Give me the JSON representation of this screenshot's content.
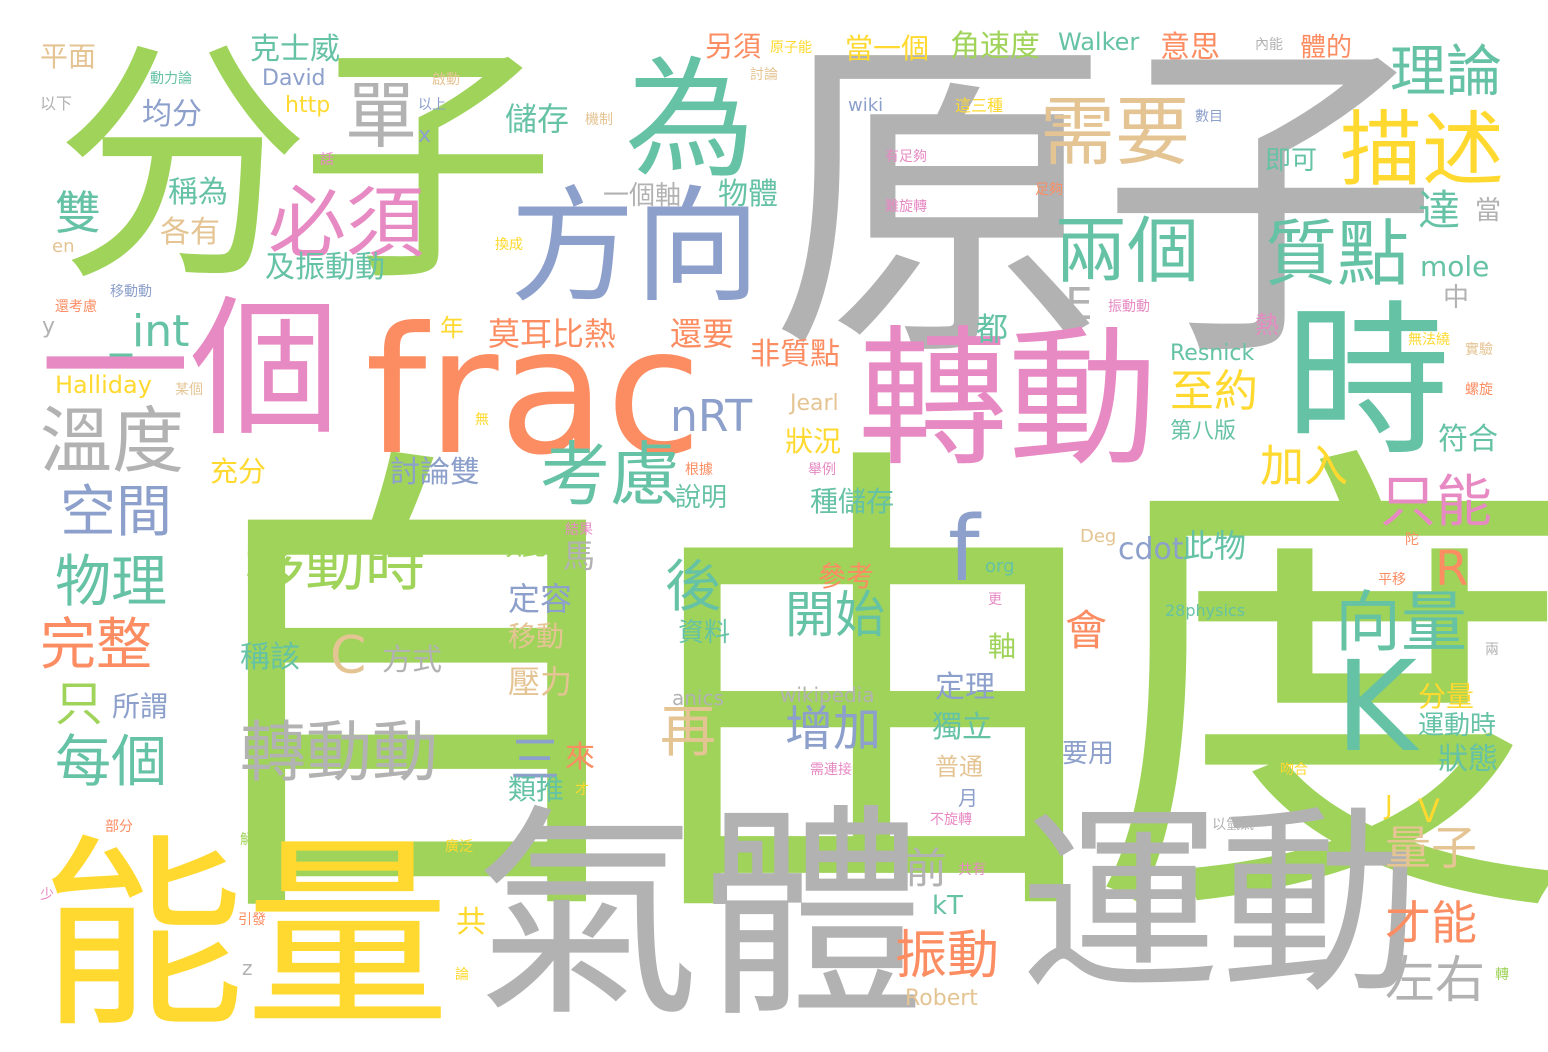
{
  "palette": {
    "green": "#9fd35a",
    "gray": "#b2b2b2",
    "teal": "#66c2a5",
    "orange": "#fc8d62",
    "pink": "#e78ac3",
    "blue": "#8da0cb",
    "yellow": "#ffd92f",
    "tan": "#e5c494"
  },
  "words": [
    {
      "text": "自由度",
      "color": "green"
    },
    {
      "text": "原子",
      "color": "gray"
    },
    {
      "text": "分子",
      "color": "green"
    },
    {
      "text": "氣體",
      "color": "gray"
    },
    {
      "text": "運動",
      "color": "gray"
    },
    {
      "text": "能量",
      "color": "yellow"
    },
    {
      "text": "frac",
      "color": "orange"
    },
    {
      "text": "轉動",
      "color": "pink"
    },
    {
      "text": "時",
      "color": "teal"
    },
    {
      "text": "一個",
      "color": "pink"
    },
    {
      "text": "為",
      "color": "teal"
    },
    {
      "text": "方向",
      "color": "blue"
    },
    {
      "text": "K",
      "color": "teal"
    },
    {
      "text": "描述",
      "color": "yellow"
    },
    {
      "text": "需要",
      "color": "tan"
    },
    {
      "text": "必須",
      "color": "pink"
    },
    {
      "text": "兩個",
      "color": "teal"
    },
    {
      "text": "質點",
      "color": "teal"
    },
    {
      "text": "溫度",
      "color": "gray"
    },
    {
      "text": "考慮",
      "color": "teal"
    },
    {
      "text": "單",
      "color": "gray"
    },
    {
      "text": "理論",
      "color": "teal"
    },
    {
      "text": "移動時",
      "color": "green"
    },
    {
      "text": "轉動動",
      "color": "gray"
    },
    {
      "text": "f",
      "color": "blue"
    },
    {
      "text": "物理",
      "color": "teal"
    },
    {
      "text": "空間",
      "color": "blue"
    },
    {
      "text": "完整",
      "color": "orange"
    },
    {
      "text": "每個",
      "color": "teal"
    },
    {
      "text": "向量",
      "color": "teal"
    },
    {
      "text": "只能",
      "color": "pink"
    },
    {
      "text": "開始",
      "color": "teal"
    },
    {
      "text": "增加",
      "color": "blue"
    },
    {
      "text": "後",
      "color": "teal"
    },
    {
      "text": "再",
      "color": "tan"
    },
    {
      "text": "振動",
      "color": "orange"
    },
    {
      "text": "左右",
      "color": "gray"
    },
    {
      "text": "量子",
      "color": "tan"
    },
    {
      "text": "才能",
      "color": "orange"
    },
    {
      "text": "nRT",
      "color": "blue"
    },
    {
      "text": "_int",
      "color": "teal"
    },
    {
      "text": "雙",
      "color": "teal"
    },
    {
      "text": "至約",
      "color": "yellow"
    },
    {
      "text": "加入",
      "color": "yellow"
    },
    {
      "text": "R",
      "color": "orange"
    },
    {
      "text": "C",
      "color": "tan"
    },
    {
      "text": "三",
      "color": "blue"
    },
    {
      "text": "只",
      "color": "green"
    },
    {
      "text": "儲存",
      "color": "teal"
    },
    {
      "text": "克士威",
      "color": "teal"
    },
    {
      "text": "角速度",
      "color": "green"
    },
    {
      "text": "另須",
      "color": "orange"
    },
    {
      "text": "當一個",
      "color": "yellow"
    },
    {
      "text": "Walker",
      "color": "teal"
    },
    {
      "text": "意思",
      "color": "orange"
    },
    {
      "text": "體的",
      "color": "orange"
    },
    {
      "text": "達",
      "color": "teal"
    },
    {
      "text": "會",
      "color": "orange"
    },
    {
      "text": "莫耳比熱",
      "color": "orange"
    },
    {
      "text": "還要",
      "color": "orange"
    },
    {
      "text": "非質點",
      "color": "orange"
    },
    {
      "text": "cdot",
      "color": "blue"
    },
    {
      "text": "此物",
      "color": "teal"
    },
    {
      "text": "定容",
      "color": "blue"
    },
    {
      "text": "移動",
      "color": "tan"
    },
    {
      "text": "壓力",
      "color": "tan"
    },
    {
      "text": "E",
      "color": "gray"
    },
    {
      "text": "前",
      "color": "gray"
    },
    {
      "text": "狀況",
      "color": "yellow"
    },
    {
      "text": "種儲存",
      "color": "teal"
    },
    {
      "text": "方式",
      "color": "gray"
    },
    {
      "text": "稱該",
      "color": "teal"
    },
    {
      "text": "mole",
      "color": "teal"
    },
    {
      "text": "Resnick",
      "color": "teal"
    },
    {
      "text": "均分",
      "color": "blue"
    },
    {
      "text": "及振動動",
      "color": "teal"
    },
    {
      "text": "討論雙",
      "color": "blue"
    },
    {
      "text": "一個軸",
      "color": "gray"
    },
    {
      "text": "物體",
      "color": "teal"
    },
    {
      "text": "Halliday",
      "color": "yellow"
    },
    {
      "text": "各有",
      "color": "tan"
    },
    {
      "text": "稱為",
      "color": "teal"
    },
    {
      "text": "分量",
      "color": "yellow"
    },
    {
      "text": "運動時",
      "color": "teal"
    },
    {
      "text": "狀態",
      "color": "teal"
    },
    {
      "text": "符合",
      "color": "teal"
    },
    {
      "text": "獨立",
      "color": "teal"
    },
    {
      "text": "定理",
      "color": "blue"
    },
    {
      "text": "普通",
      "color": "tan"
    },
    {
      "text": "要用",
      "color": "blue"
    },
    {
      "text": "第八版",
      "color": "teal"
    },
    {
      "text": "都",
      "color": "teal"
    },
    {
      "text": "即可",
      "color": "teal"
    },
    {
      "text": "當",
      "color": "gray"
    },
    {
      "text": "V",
      "color": "yellow"
    },
    {
      "text": "Robert",
      "color": "tan"
    },
    {
      "text": "David",
      "color": "blue"
    },
    {
      "text": "http",
      "color": "yellow"
    },
    {
      "text": "平面",
      "color": "tan"
    },
    {
      "text": "充分",
      "color": "yellow"
    },
    {
      "text": "說明",
      "color": "teal"
    },
    {
      "text": "以此",
      "color": "green"
    },
    {
      "text": "馬",
      "color": "gray"
    },
    {
      "text": "參考",
      "color": "orange"
    },
    {
      "text": "資料",
      "color": "teal"
    },
    {
      "text": "所謂",
      "color": "blue"
    },
    {
      "text": "類推",
      "color": "teal"
    },
    {
      "text": "來",
      "color": "orange"
    },
    {
      "text": "軸",
      "color": "green"
    },
    {
      "text": "kT",
      "color": "teal"
    },
    {
      "text": "共",
      "color": "yellow"
    },
    {
      "text": "年",
      "color": "yellow"
    },
    {
      "text": "Jearl",
      "color": "tan"
    },
    {
      "text": "中",
      "color": "gray"
    },
    {
      "text": "熱",
      "color": "pink"
    },
    {
      "text": "org",
      "color": "teal"
    },
    {
      "text": "wikipedia",
      "color": "gray"
    },
    {
      "text": "anics",
      "color": "gray"
    },
    {
      "text": "wiki",
      "color": "blue"
    },
    {
      "text": "y",
      "color": "gray"
    },
    {
      "text": "x",
      "color": "blue"
    },
    {
      "text": "J",
      "color": "yellow"
    },
    {
      "text": "en",
      "color": "tan"
    },
    {
      "text": "z",
      "color": "gray"
    },
    {
      "text": "月",
      "color": "blue"
    },
    {
      "text": "28physics",
      "color": "teal"
    },
    {
      "text": "Deg",
      "color": "tan"
    },
    {
      "text": "動力論",
      "color": "teal"
    },
    {
      "text": "以下",
      "color": "gray"
    },
    {
      "text": "啟動",
      "color": "tan"
    },
    {
      "text": "以上",
      "color": "blue"
    },
    {
      "text": "機制",
      "color": "tan"
    },
    {
      "text": "原子能",
      "color": "yellow"
    },
    {
      "text": "討論",
      "color": "tan"
    },
    {
      "text": "這三種",
      "color": "yellow"
    },
    {
      "text": "數目",
      "color": "blue"
    },
    {
      "text": "內能",
      "color": "gray"
    },
    {
      "text": "個旋轉",
      "color": "gray"
    },
    {
      "text": "有足夠",
      "color": "pink"
    },
    {
      "text": "足夠",
      "color": "orange"
    },
    {
      "text": "難旋轉",
      "color": "pink"
    },
    {
      "text": "換成",
      "color": "yellow"
    },
    {
      "text": "振動動",
      "color": "pink"
    },
    {
      "text": "移動動",
      "color": "blue"
    },
    {
      "text": "還考慮",
      "color": "orange"
    },
    {
      "text": "話",
      "color": "pink"
    },
    {
      "text": "某個",
      "color": "tan"
    },
    {
      "text": "無",
      "color": "yellow"
    },
    {
      "text": "根據",
      "color": "orange"
    },
    {
      "text": "舉例",
      "color": "pink"
    },
    {
      "text": "結果",
      "color": "pink"
    },
    {
      "text": "無法繞",
      "color": "yellow"
    },
    {
      "text": "實驗",
      "color": "tan"
    },
    {
      "text": "螺旋",
      "color": "orange"
    },
    {
      "text": "陀",
      "color": "orange"
    },
    {
      "text": "平移",
      "color": "orange"
    },
    {
      "text": "更",
      "color": "pink"
    },
    {
      "text": "兩",
      "color": "gray"
    },
    {
      "text": "需連接",
      "color": "pink"
    },
    {
      "text": "吻合",
      "color": "yellow"
    },
    {
      "text": "不旋轉",
      "color": "pink"
    },
    {
      "text": "以氫氣",
      "color": "gray"
    },
    {
      "text": "共有",
      "color": "pink"
    },
    {
      "text": "解釋",
      "color": "green"
    },
    {
      "text": "廣泛",
      "color": "yellow"
    },
    {
      "text": "部分",
      "color": "orange"
    },
    {
      "text": "少",
      "color": "pink"
    },
    {
      "text": "引發",
      "color": "orange"
    },
    {
      "text": "論",
      "color": "yellow"
    },
    {
      "text": "轉",
      "color": "green"
    },
    {
      "text": "才",
      "color": "yellow"
    }
  ]
}
